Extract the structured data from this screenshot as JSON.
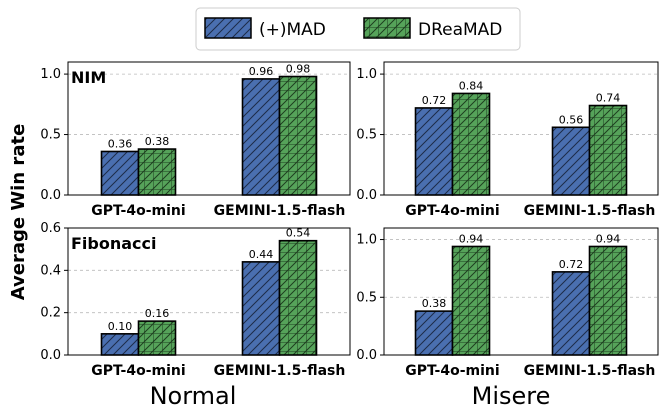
{
  "chart_data": {
    "type": "bar",
    "ylabel": "Average Win rate",
    "legend": [
      {
        "name": "(+)MAD",
        "color": "#4a6fb0"
      },
      {
        "name": "DReaMAD",
        "color": "#56a35a"
      }
    ],
    "conditions": [
      "Normal",
      "Misere"
    ],
    "panels": [
      {
        "title": "NIM",
        "condition": "Normal",
        "categories": [
          "GPT-4o-mini",
          "GEMINI-1.5-flash"
        ],
        "series": [
          {
            "name": "(+)MAD",
            "values": [
              0.36,
              0.96
            ]
          },
          {
            "name": "DReaMAD",
            "values": [
              0.38,
              0.98
            ]
          }
        ],
        "ylim": [
          0,
          1.1
        ],
        "yticks": [
          0.0,
          0.5,
          1.0
        ],
        "yticklabels": [
          "0.0",
          "0.5",
          "1.0"
        ]
      },
      {
        "title": "",
        "condition": "Misere",
        "categories": [
          "GPT-4o-mini",
          "GEMINI-1.5-flash"
        ],
        "series": [
          {
            "name": "(+)MAD",
            "values": [
              0.72,
              0.56
            ]
          },
          {
            "name": "DReaMAD",
            "values": [
              0.84,
              0.74
            ]
          }
        ],
        "ylim": [
          0,
          1.1
        ],
        "yticks": [
          0.0,
          0.5,
          1.0
        ],
        "yticklabels": [
          "0.0",
          "0.5",
          "1.0"
        ]
      },
      {
        "title": "Fibonacci",
        "condition": "Normal",
        "categories": [
          "GPT-4o-mini",
          "GEMINI-1.5-flash"
        ],
        "series": [
          {
            "name": "(+)MAD",
            "values": [
              0.1,
              0.44
            ]
          },
          {
            "name": "DReaMAD",
            "values": [
              0.16,
              0.54
            ]
          }
        ],
        "ylim": [
          0,
          0.6
        ],
        "yticks": [
          0.0,
          0.2,
          0.4,
          0.6
        ],
        "yticklabels": [
          "0.0",
          "0.2",
          "0.4",
          "0.6"
        ]
      },
      {
        "title": "",
        "condition": "Misere",
        "categories": [
          "GPT-4o-mini",
          "GEMINI-1.5-flash"
        ],
        "series": [
          {
            "name": "(+)MAD",
            "values": [
              0.38,
              0.72
            ]
          },
          {
            "name": "DReaMAD",
            "values": [
              0.94,
              0.94
            ]
          }
        ],
        "ylim": [
          0,
          1.1
        ],
        "yticks": [
          0.0,
          0.5,
          1.0
        ],
        "yticklabels": [
          "0.0",
          "0.5",
          "1.0"
        ]
      }
    ]
  }
}
